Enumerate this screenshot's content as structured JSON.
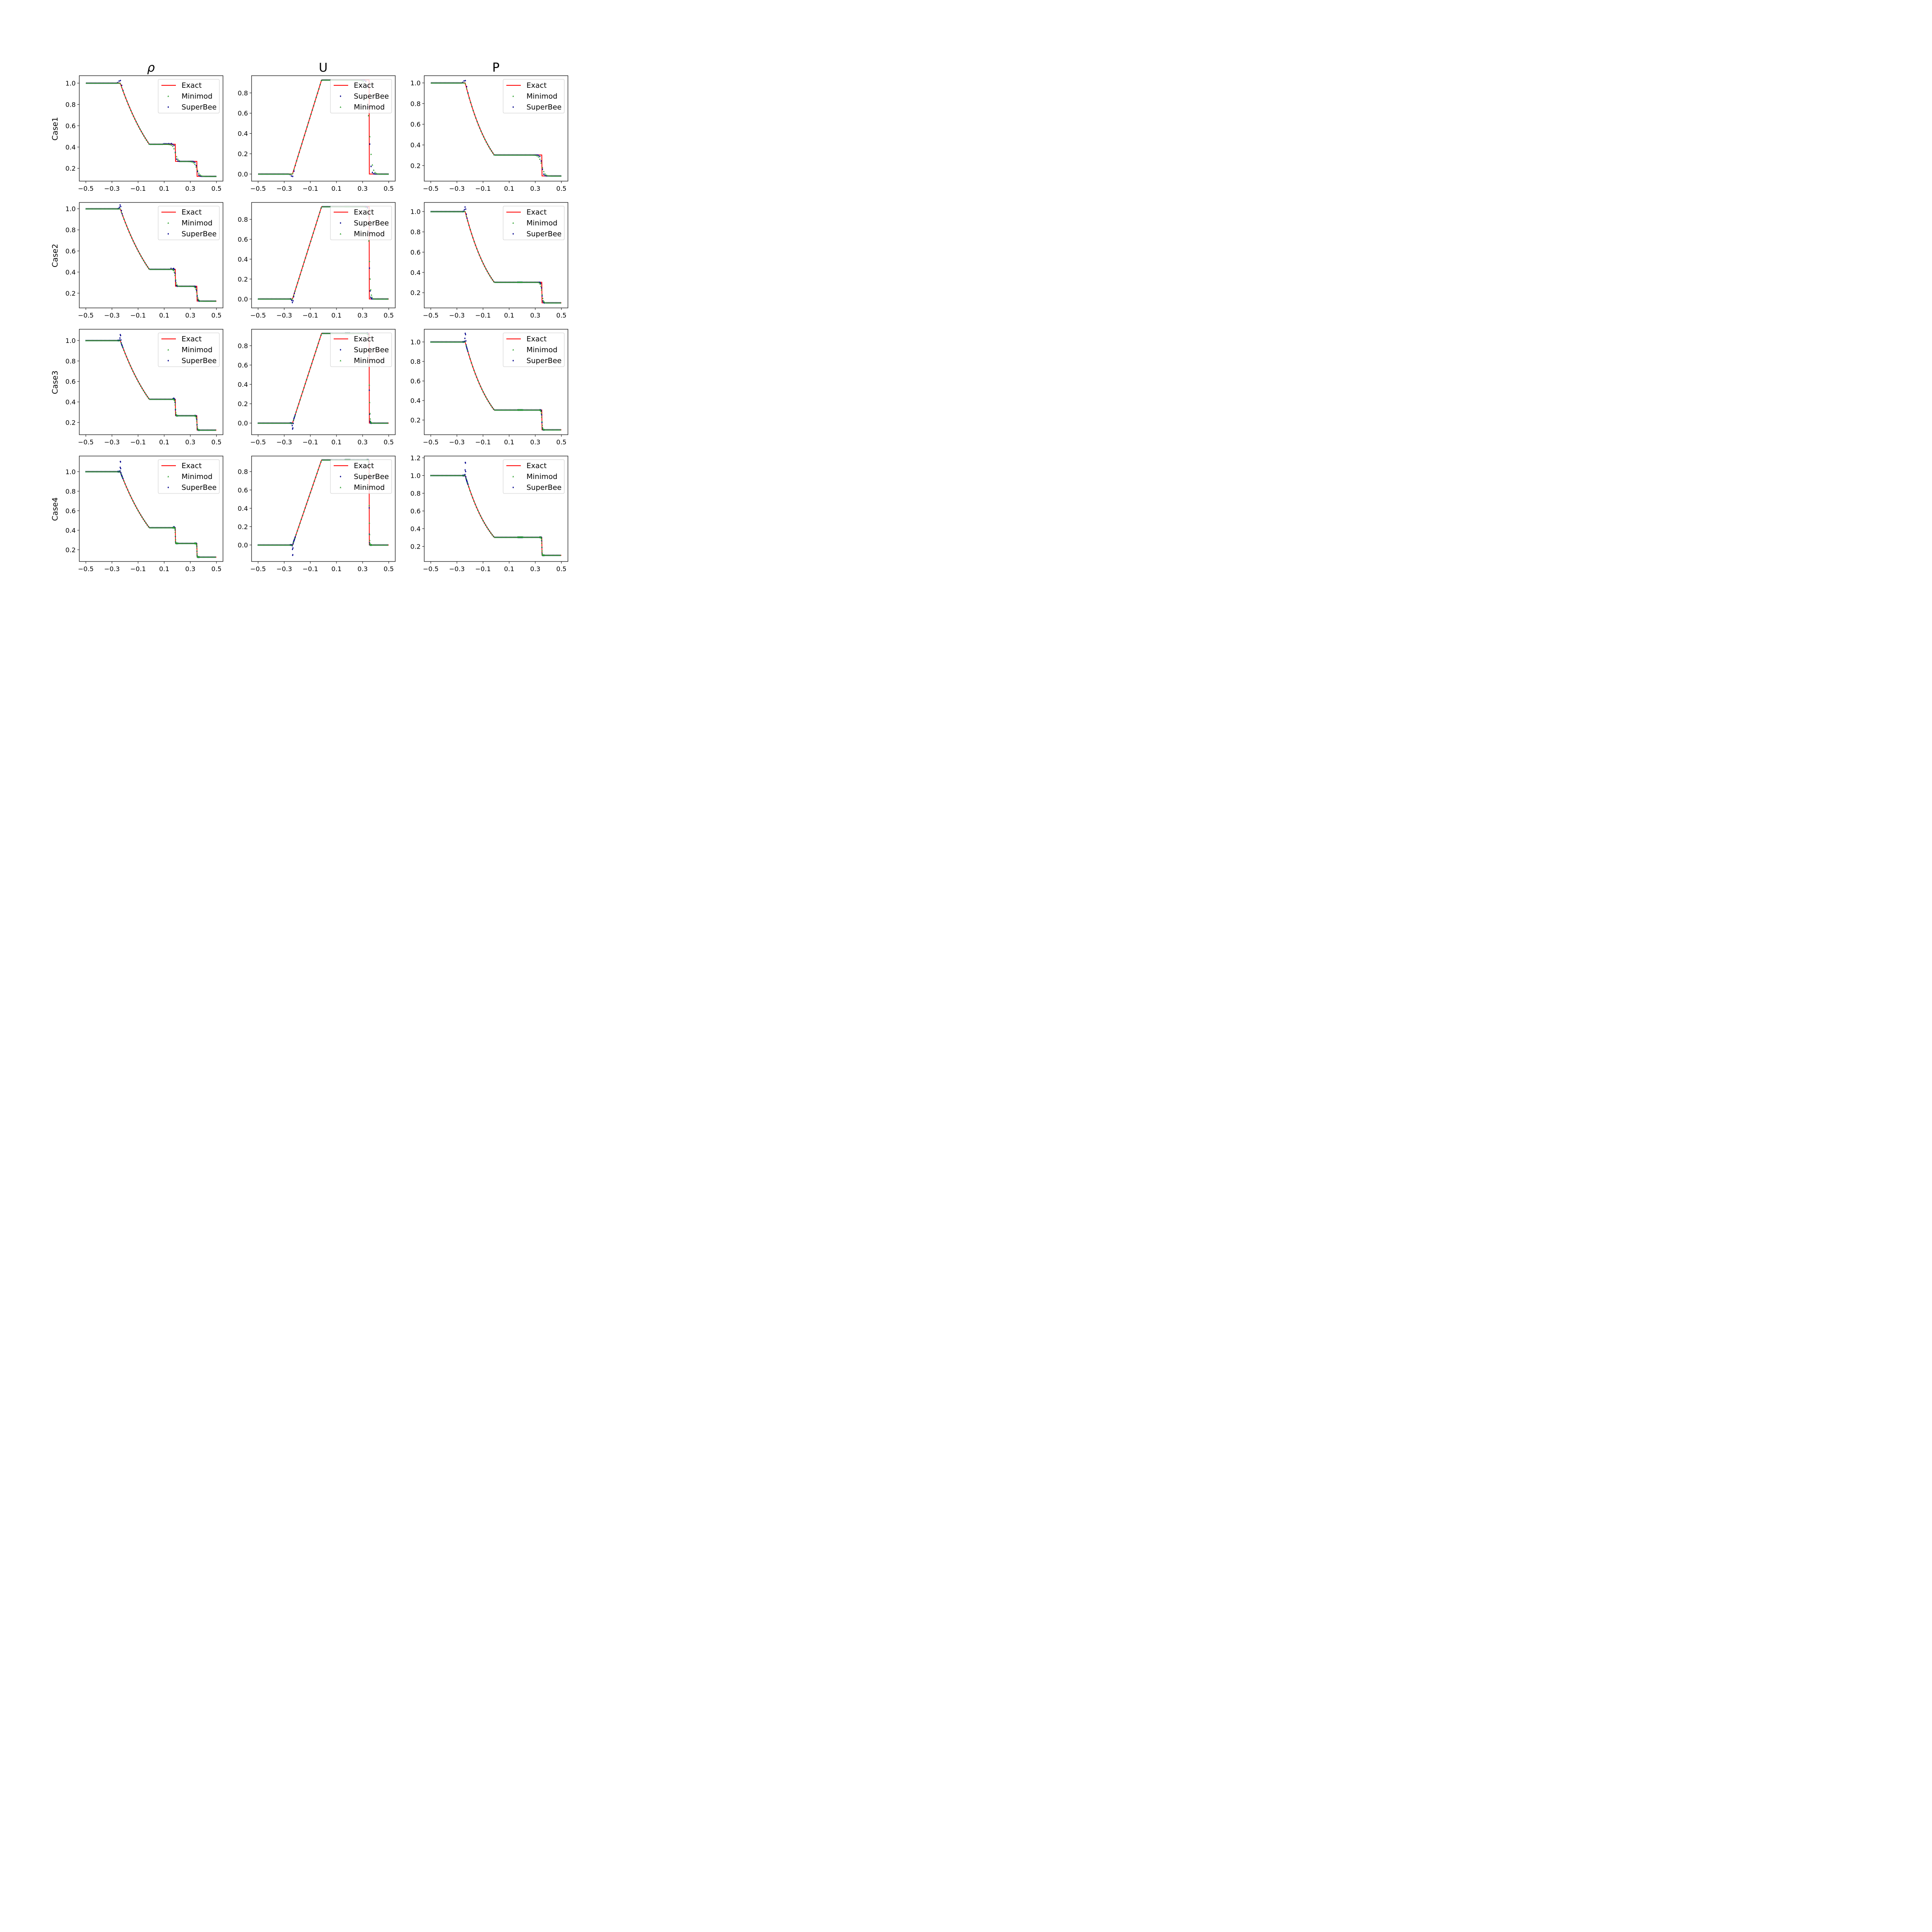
{
  "columns": [
    "ρ",
    "U",
    "P"
  ],
  "rows": [
    "Case1",
    "Case2",
    "Case3",
    "Case4"
  ],
  "colors": {
    "exact": "#ff0000",
    "minimod": "#2ca02c",
    "superbee": "#00008b",
    "axes": "#000000",
    "legend_border": "#cccccc"
  },
  "legend_order": {
    "ρ": [
      "Exact",
      "Minimod",
      "SuperBee"
    ],
    "U": [
      "Exact",
      "SuperBee",
      "Minimod"
    ],
    "P": [
      "Exact",
      "Minimod",
      "SuperBee"
    ]
  },
  "chart_data": [
    {
      "type": "line",
      "row": "Case1",
      "variable": "ρ",
      "xlim": [
        -0.55,
        0.55
      ],
      "ylim": [
        0.08,
        1.07
      ],
      "xticks": [
        -0.5,
        -0.3,
        -0.1,
        0.1,
        0.3,
        0.5
      ],
      "xtick_labels": [
        "−0.5",
        "−0.3",
        "−0.1",
        "0.1",
        "0.3",
        "0.5"
      ],
      "yticks": [
        0.2,
        0.4,
        0.6,
        0.8,
        1.0
      ],
      "ytick_labels": [
        "0.2",
        "0.4",
        "0.6",
        "0.8",
        "1.0"
      ],
      "series": [
        {
          "name": "Exact",
          "marker": "line"
        },
        {
          "name": "Minimod",
          "marker": "triangle"
        },
        {
          "name": "SuperBee",
          "marker": "diamond"
        }
      ],
      "numerical_points": 100,
      "overshoot": {
        "x": -0.235,
        "dy": 0.03
      }
    },
    {
      "type": "line",
      "row": "Case1",
      "variable": "U",
      "xlim": [
        -0.55,
        0.55
      ],
      "ylim": [
        -0.07,
        0.97
      ],
      "xticks": [
        -0.5,
        -0.3,
        -0.1,
        0.1,
        0.3,
        0.5
      ],
      "xtick_labels": [
        "−0.5",
        "−0.3",
        "−0.1",
        "0.1",
        "0.3",
        "0.5"
      ],
      "yticks": [
        0.0,
        0.2,
        0.4,
        0.6,
        0.8
      ],
      "ytick_labels": [
        "0.0",
        "0.2",
        "0.4",
        "0.6",
        "0.8"
      ],
      "series": [
        {
          "name": "Exact",
          "marker": "line"
        },
        {
          "name": "SuperBee",
          "marker": "diamond"
        },
        {
          "name": "Minimod",
          "marker": "triangle"
        }
      ],
      "numerical_points": 100,
      "overshoot": {
        "x": -0.235,
        "dy": -0.03
      }
    },
    {
      "type": "line",
      "row": "Case1",
      "variable": "P",
      "xlim": [
        -0.55,
        0.55
      ],
      "ylim": [
        0.05,
        1.07
      ],
      "xticks": [
        -0.5,
        -0.3,
        -0.1,
        0.1,
        0.3,
        0.5
      ],
      "xtick_labels": [
        "−0.5",
        "−0.3",
        "−0.1",
        "0.1",
        "0.3",
        "0.5"
      ],
      "yticks": [
        0.2,
        0.4,
        0.6,
        0.8,
        1.0
      ],
      "ytick_labels": [
        "0.2",
        "0.4",
        "0.6",
        "0.8",
        "1.0"
      ],
      "series": [
        {
          "name": "Exact",
          "marker": "line"
        },
        {
          "name": "Minimod",
          "marker": "triangle"
        },
        {
          "name": "SuperBee",
          "marker": "diamond"
        }
      ],
      "numerical_points": 100,
      "overshoot": {
        "x": -0.235,
        "dy": 0.03
      }
    },
    {
      "type": "line",
      "row": "Case2",
      "variable": "ρ",
      "xlim": [
        -0.55,
        0.55
      ],
      "ylim": [
        0.06,
        1.06
      ],
      "xticks": [
        -0.5,
        -0.3,
        -0.1,
        0.1,
        0.3,
        0.5
      ],
      "xtick_labels": [
        "−0.5",
        "−0.3",
        "−0.1",
        "0.1",
        "0.3",
        "0.5"
      ],
      "yticks": [
        0.2,
        0.4,
        0.6,
        0.8,
        1.0
      ],
      "ytick_labels": [
        "0.2",
        "0.4",
        "0.6",
        "0.8",
        "1.0"
      ],
      "series": [
        {
          "name": "Exact",
          "marker": "line"
        },
        {
          "name": "Minimod",
          "marker": "triangle"
        },
        {
          "name": "SuperBee",
          "marker": "diamond"
        }
      ],
      "numerical_points": 200,
      "overshoot": {
        "x": -0.235,
        "dy": 0.04
      }
    },
    {
      "type": "line",
      "row": "Case2",
      "variable": "U",
      "xlim": [
        -0.55,
        0.55
      ],
      "ylim": [
        -0.09,
        0.97
      ],
      "xticks": [
        -0.5,
        -0.3,
        -0.1,
        0.1,
        0.3,
        0.5
      ],
      "xtick_labels": [
        "−0.5",
        "−0.3",
        "−0.1",
        "0.1",
        "0.3",
        "0.5"
      ],
      "yticks": [
        0.0,
        0.2,
        0.4,
        0.6,
        0.8
      ],
      "ytick_labels": [
        "0.0",
        "0.2",
        "0.4",
        "0.6",
        "0.8"
      ],
      "series": [
        {
          "name": "Exact",
          "marker": "line"
        },
        {
          "name": "SuperBee",
          "marker": "diamond"
        },
        {
          "name": "Minimod",
          "marker": "triangle"
        }
      ],
      "numerical_points": 200,
      "overshoot": {
        "x": -0.235,
        "dy": -0.04
      }
    },
    {
      "type": "line",
      "row": "Case2",
      "variable": "P",
      "xlim": [
        -0.55,
        0.55
      ],
      "ylim": [
        0.05,
        1.09
      ],
      "xticks": [
        -0.5,
        -0.3,
        -0.1,
        0.1,
        0.3,
        0.5
      ],
      "xtick_labels": [
        "−0.5",
        "−0.3",
        "−0.1",
        "0.1",
        "0.3",
        "0.5"
      ],
      "yticks": [
        0.2,
        0.4,
        0.6,
        0.8,
        1.0
      ],
      "ytick_labels": [
        "0.2",
        "0.4",
        "0.6",
        "0.8",
        "1.0"
      ],
      "series": [
        {
          "name": "Exact",
          "marker": "line"
        },
        {
          "name": "Minimod",
          "marker": "triangle"
        },
        {
          "name": "SuperBee",
          "marker": "diamond"
        }
      ],
      "numerical_points": 200,
      "overshoot": {
        "x": -0.235,
        "dy": 0.05
      }
    },
    {
      "type": "line",
      "row": "Case3",
      "variable": "ρ",
      "xlim": [
        -0.55,
        0.55
      ],
      "ylim": [
        0.08,
        1.11
      ],
      "xticks": [
        -0.5,
        -0.3,
        -0.1,
        0.1,
        0.3,
        0.5
      ],
      "xtick_labels": [
        "−0.5",
        "−0.3",
        "−0.1",
        "0.1",
        "0.3",
        "0.5"
      ],
      "yticks": [
        0.2,
        0.4,
        0.6,
        0.8,
        1.0
      ],
      "ytick_labels": [
        "0.2",
        "0.4",
        "0.6",
        "0.8",
        "1.0"
      ],
      "series": [
        {
          "name": "Exact",
          "marker": "line"
        },
        {
          "name": "Minimod",
          "marker": "triangle"
        },
        {
          "name": "SuperBee",
          "marker": "diamond"
        }
      ],
      "numerical_points": 400,
      "overshoot": {
        "x": -0.235,
        "dy": 0.065
      }
    },
    {
      "type": "line",
      "row": "Case3",
      "variable": "U",
      "xlim": [
        -0.55,
        0.55
      ],
      "ylim": [
        -0.12,
        0.97
      ],
      "xticks": [
        -0.5,
        -0.3,
        -0.1,
        0.1,
        0.3,
        0.5
      ],
      "xtick_labels": [
        "−0.5",
        "−0.3",
        "−0.1",
        "0.1",
        "0.3",
        "0.5"
      ],
      "yticks": [
        0.0,
        0.2,
        0.4,
        0.6,
        0.8
      ],
      "ytick_labels": [
        "0.0",
        "0.2",
        "0.4",
        "0.6",
        "0.8"
      ],
      "series": [
        {
          "name": "Exact",
          "marker": "line"
        },
        {
          "name": "SuperBee",
          "marker": "diamond"
        },
        {
          "name": "Minimod",
          "marker": "triangle"
        }
      ],
      "numerical_points": 400,
      "overshoot": {
        "x": -0.235,
        "dy": -0.07
      }
    },
    {
      "type": "line",
      "row": "Case3",
      "variable": "P",
      "xlim": [
        -0.55,
        0.55
      ],
      "ylim": [
        0.05,
        1.13
      ],
      "xticks": [
        -0.5,
        -0.3,
        -0.1,
        0.1,
        0.3,
        0.5
      ],
      "xtick_labels": [
        "−0.5",
        "−0.3",
        "−0.1",
        "0.1",
        "0.3",
        "0.5"
      ],
      "yticks": [
        0.2,
        0.4,
        0.6,
        0.8,
        1.0
      ],
      "ytick_labels": [
        "0.2",
        "0.4",
        "0.6",
        "0.8",
        "1.0"
      ],
      "series": [
        {
          "name": "Exact",
          "marker": "line"
        },
        {
          "name": "Minimod",
          "marker": "triangle"
        },
        {
          "name": "SuperBee",
          "marker": "diamond"
        }
      ],
      "numerical_points": 400,
      "overshoot": {
        "x": -0.235,
        "dy": 0.1
      }
    },
    {
      "type": "line",
      "row": "Case4",
      "variable": "ρ",
      "xlim": [
        -0.55,
        0.55
      ],
      "ylim": [
        0.08,
        1.16
      ],
      "xticks": [
        -0.5,
        -0.3,
        -0.1,
        0.1,
        0.3,
        0.5
      ],
      "xtick_labels": [
        "−0.5",
        "−0.3",
        "−0.1",
        "0.1",
        "0.3",
        "0.5"
      ],
      "yticks": [
        0.2,
        0.4,
        0.6,
        0.8,
        1.0
      ],
      "ytick_labels": [
        "0.2",
        "0.4",
        "0.6",
        "0.8",
        "1.0"
      ],
      "series": [
        {
          "name": "Exact",
          "marker": "line"
        },
        {
          "name": "Minimod",
          "marker": "triangle"
        },
        {
          "name": "SuperBee",
          "marker": "diamond"
        }
      ],
      "numerical_points": 800,
      "overshoot": {
        "x": -0.235,
        "dy": 0.12
      }
    },
    {
      "type": "line",
      "row": "Case4",
      "variable": "U",
      "xlim": [
        -0.55,
        0.55
      ],
      "ylim": [
        -0.18,
        0.97
      ],
      "xticks": [
        -0.5,
        -0.3,
        -0.1,
        0.1,
        0.3,
        0.5
      ],
      "xtick_labels": [
        "−0.5",
        "−0.3",
        "−0.1",
        "0.1",
        "0.3",
        "0.5"
      ],
      "yticks": [
        0.0,
        0.2,
        0.4,
        0.6,
        0.8
      ],
      "ytick_labels": [
        "0.0",
        "0.2",
        "0.4",
        "0.6",
        "0.8"
      ],
      "series": [
        {
          "name": "Exact",
          "marker": "line"
        },
        {
          "name": "SuperBee",
          "marker": "diamond"
        },
        {
          "name": "Minimod",
          "marker": "triangle"
        }
      ],
      "numerical_points": 800,
      "overshoot": {
        "x": -0.235,
        "dy": -0.13
      }
    },
    {
      "type": "line",
      "row": "Case4",
      "variable": "P",
      "xlim": [
        -0.55,
        0.55
      ],
      "ylim": [
        0.03,
        1.22
      ],
      "xticks": [
        -0.5,
        -0.3,
        -0.1,
        0.1,
        0.3,
        0.5
      ],
      "xtick_labels": [
        "−0.5",
        "−0.3",
        "−0.1",
        "0.1",
        "0.3",
        "0.5"
      ],
      "yticks": [
        0.2,
        0.4,
        0.6,
        0.8,
        1.0,
        1.2
      ],
      "ytick_labels": [
        "0.2",
        "0.4",
        "0.6",
        "0.8",
        "1.0",
        "1.2"
      ],
      "series": [
        {
          "name": "Exact",
          "marker": "line"
        },
        {
          "name": "Minimod",
          "marker": "triangle"
        },
        {
          "name": "SuperBee",
          "marker": "diamond"
        }
      ],
      "numerical_points": 800,
      "overshoot": {
        "x": -0.235,
        "dy": 0.17
      }
    }
  ]
}
